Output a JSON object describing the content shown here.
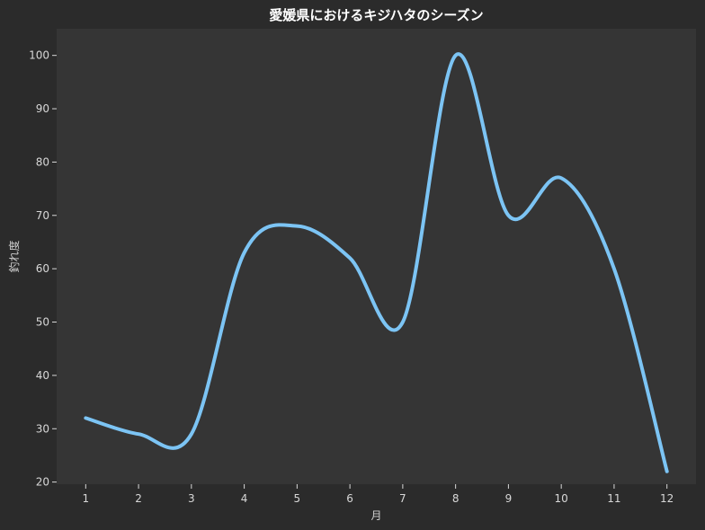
{
  "chart_data": {
    "type": "line",
    "title": "愛媛県におけるキジハタのシーズン",
    "xlabel": "月",
    "ylabel": "釣れ度",
    "x": [
      1,
      2,
      3,
      4,
      5,
      6,
      7,
      8,
      9,
      10,
      11,
      12
    ],
    "x_tick_labels": [
      "1",
      "2",
      "3",
      "4",
      "5",
      "6",
      "7",
      "8",
      "9",
      "10",
      "11",
      "12"
    ],
    "series": [
      {
        "values": [
          32,
          29,
          29,
          63,
          68,
          62,
          50,
          100,
          70,
          77,
          60,
          22
        ],
        "color": "#7cc4f4"
      }
    ],
    "xlim": [
      0.45,
      12.55
    ],
    "ylim": [
      19.6,
      105
    ],
    "y_ticks": [
      20,
      30,
      40,
      50,
      60,
      70,
      80,
      90,
      100
    ],
    "grid": false,
    "legend": "none",
    "colors": {
      "page_background": "#2b2b2b",
      "plot_background": "#353535",
      "line": "#7cc4f4",
      "text": "#d8d8d8",
      "title": "#ffffff"
    }
  }
}
